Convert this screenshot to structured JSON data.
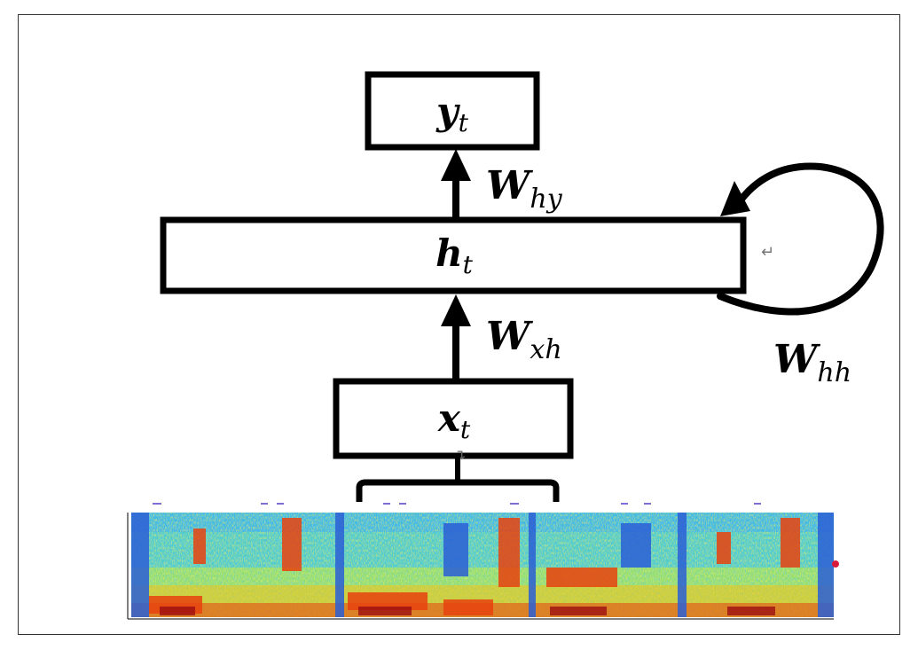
{
  "nodes": {
    "y": {
      "symbol": "y",
      "subscript": "t"
    },
    "h": {
      "symbol": "h",
      "subscript": "t"
    },
    "x": {
      "symbol": "x",
      "subscript": "t"
    }
  },
  "weights": {
    "hy": {
      "symbol": "W",
      "subscript": "hy"
    },
    "xh": {
      "symbol": "W",
      "subscript": "xh"
    },
    "hh": {
      "symbol": "W",
      "subscript": "hh"
    }
  },
  "marks": {
    "return_glyph": "↵",
    "down_return_glyph": "↴"
  },
  "colors": {
    "stroke": "#000000",
    "frame": "#333333",
    "marker_dash": "#7b6fd6",
    "red_dot": "#d81b3a"
  }
}
